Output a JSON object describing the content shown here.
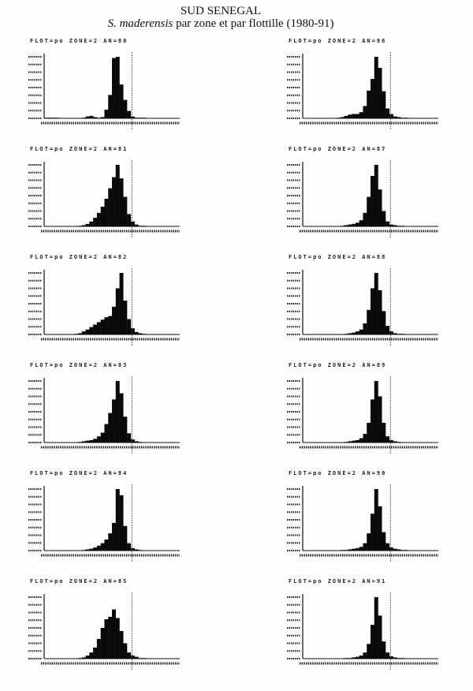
{
  "title": "SUD SENEGAL",
  "subtitle_species": "S. maderensis",
  "subtitle_rest": " par zone et par flottille (1980-91)",
  "chart_data": [
    {
      "type": "bar",
      "title": "FLOT=po ZONE=2 AN=80",
      "values": [
        1,
        1,
        1,
        1,
        0,
        0,
        0,
        0,
        0,
        0,
        1,
        3,
        4,
        2,
        1,
        2,
        14,
        38,
        98,
        100,
        55,
        30,
        12,
        3,
        1,
        1,
        1,
        0,
        0,
        0,
        0,
        0,
        0,
        0,
        0,
        0
      ]
    },
    {
      "type": "bar",
      "title": "FLOT=po ZONE=2 AN=81",
      "values": [
        0,
        0,
        0,
        0,
        0,
        0,
        0,
        0,
        0,
        1,
        2,
        4,
        8,
        14,
        22,
        32,
        45,
        62,
        80,
        100,
        78,
        48,
        20,
        8,
        3,
        1,
        1,
        0,
        0,
        0,
        0,
        0,
        0,
        0,
        0,
        0
      ]
    },
    {
      "type": "bar",
      "title": "FLOT=po ZONE=2 AN=82",
      "values": [
        0,
        0,
        0,
        0,
        0,
        0,
        0,
        0,
        1,
        2,
        5,
        8,
        12,
        16,
        20,
        24,
        28,
        30,
        45,
        75,
        100,
        55,
        25,
        10,
        4,
        2,
        1,
        0,
        0,
        0,
        0,
        0,
        0,
        0,
        0,
        0
      ]
    },
    {
      "type": "bar",
      "title": "FLOT=po ZONE=2 AN=83",
      "values": [
        0,
        0,
        0,
        0,
        0,
        0,
        0,
        0,
        0,
        1,
        2,
        3,
        4,
        6,
        10,
        16,
        30,
        48,
        70,
        100,
        80,
        42,
        15,
        5,
        2,
        1,
        0,
        0,
        0,
        0,
        0,
        0,
        0,
        0,
        0,
        0
      ]
    },
    {
      "type": "bar",
      "title": "FLOT=po ZONE=2 AN=84",
      "values": [
        0,
        0,
        0,
        0,
        0,
        0,
        0,
        0,
        0,
        0,
        1,
        2,
        3,
        5,
        8,
        12,
        18,
        28,
        45,
        100,
        90,
        40,
        12,
        4,
        2,
        1,
        0,
        0,
        0,
        0,
        0,
        0,
        0,
        0,
        0,
        0
      ]
    },
    {
      "type": "bar",
      "title": "FLOT=po ZONE=2 AN=85",
      "values": [
        0,
        0,
        0,
        0,
        0,
        0,
        0,
        0,
        0,
        1,
        2,
        5,
        10,
        18,
        32,
        50,
        64,
        68,
        80,
        66,
        45,
        25,
        10,
        5,
        3,
        1,
        1,
        0,
        0,
        0,
        0,
        0,
        0,
        0,
        0,
        0
      ]
    },
    {
      "type": "bar",
      "title": "FLOT=po ZONE=2 AN=86",
      "values": [
        0,
        0,
        0,
        0,
        0,
        0,
        0,
        0,
        0,
        1,
        2,
        4,
        6,
        7,
        7,
        10,
        20,
        45,
        64,
        100,
        82,
        44,
        16,
        7,
        3,
        2,
        1,
        1,
        0,
        0,
        0,
        0,
        0,
        0,
        0,
        0
      ]
    },
    {
      "type": "bar",
      "title": "FLOT=po ZONE=2 AN=87",
      "values": [
        0,
        0,
        0,
        0,
        0,
        0,
        0,
        0,
        0,
        0,
        1,
        2,
        3,
        4,
        6,
        10,
        22,
        48,
        82,
        100,
        60,
        25,
        8,
        3,
        2,
        1,
        1,
        0,
        0,
        0,
        0,
        0,
        0,
        0,
        0,
        0
      ]
    },
    {
      "type": "bar",
      "title": "FLOT=po ZONE=2 AN=88",
      "values": [
        0,
        0,
        0,
        0,
        0,
        0,
        0,
        0,
        0,
        0,
        0,
        1,
        2,
        3,
        5,
        8,
        18,
        40,
        75,
        100,
        72,
        38,
        14,
        5,
        2,
        1,
        1,
        0,
        0,
        0,
        0,
        0,
        0,
        0,
        0,
        0
      ]
    },
    {
      "type": "bar",
      "title": "FLOT=po ZONE=2 AN=89",
      "values": [
        0,
        0,
        0,
        0,
        0,
        0,
        0,
        0,
        0,
        0,
        0,
        1,
        2,
        3,
        4,
        7,
        14,
        32,
        70,
        100,
        75,
        32,
        10,
        4,
        2,
        1,
        0,
        0,
        0,
        0,
        0,
        0,
        0,
        0,
        0,
        0
      ]
    },
    {
      "type": "bar",
      "title": "FLOT=po ZONE=2 AN=90",
      "values": [
        0,
        0,
        0,
        0,
        0,
        0,
        0,
        0,
        0,
        0,
        1,
        1,
        2,
        3,
        4,
        6,
        12,
        28,
        60,
        100,
        72,
        30,
        12,
        5,
        3,
        2,
        1,
        1,
        0,
        0,
        0,
        0,
        0,
        0,
        0,
        0
      ]
    },
    {
      "type": "bar",
      "title": "FLOT=po ZONE=2 AN=91",
      "values": [
        0,
        0,
        0,
        0,
        0,
        0,
        0,
        0,
        0,
        0,
        0,
        1,
        1,
        2,
        3,
        5,
        10,
        24,
        55,
        100,
        70,
        28,
        10,
        4,
        2,
        1,
        1,
        0,
        0,
        0,
        0,
        0,
        0,
        0,
        0,
        0
      ]
    }
  ]
}
